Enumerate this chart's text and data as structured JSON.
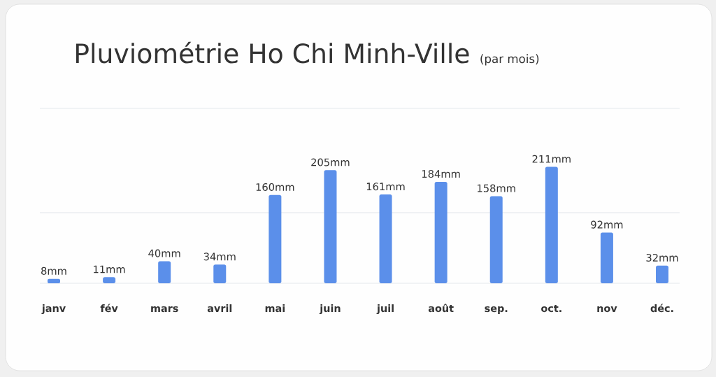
{
  "chart_data": {
    "type": "bar",
    "title": "Pluviométrie Ho Chi Minh-Ville",
    "subtitle": "(par mois)",
    "categories": [
      "janv",
      "fév",
      "mars",
      "avril",
      "mai",
      "juin",
      "juil",
      "août",
      "sep.",
      "oct.",
      "nov",
      "déc."
    ],
    "values": [
      8,
      11,
      40,
      34,
      160,
      205,
      161,
      184,
      158,
      211,
      92,
      32
    ],
    "value_labels": [
      "8mm",
      "11mm",
      "40mm",
      "34mm",
      "160mm",
      "205mm",
      "161mm",
      "184mm",
      "158mm",
      "211mm",
      "92mm",
      "32mm"
    ],
    "color": "#5b8fea",
    "ylim": [
      0,
      317
    ],
    "ref_lines": [
      {
        "axis": "y",
        "value": 128,
        "color": "#e4e7eb"
      },
      {
        "axis": "y",
        "value": 317,
        "color": "#e4e7eb"
      }
    ],
    "tick_labels": "x"
  }
}
